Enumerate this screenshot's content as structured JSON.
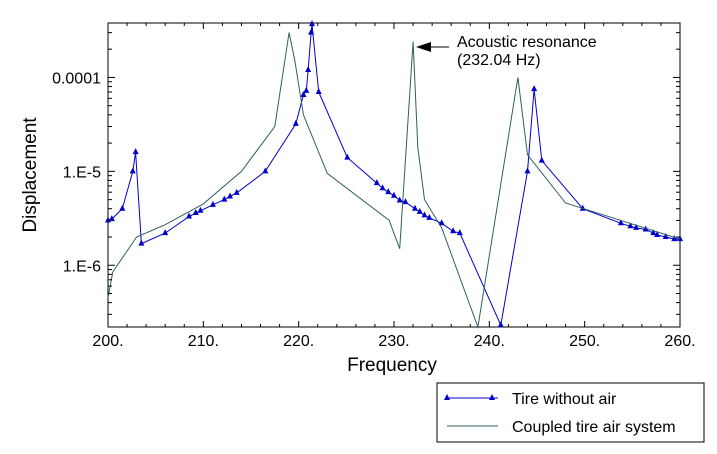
{
  "chart_data": {
    "type": "line",
    "xlabel": "Frequency",
    "ylabel": "Displacement",
    "xlim": [
      200,
      260
    ],
    "ylim": [
      2.2e-07,
      0.00038
    ],
    "yscale": "log",
    "grid": false,
    "legend_position": "bottom-right",
    "x_ticks": [
      {
        "value": 200,
        "label": "200."
      },
      {
        "value": 210,
        "label": "210."
      },
      {
        "value": 220,
        "label": "220."
      },
      {
        "value": 230,
        "label": "230."
      },
      {
        "value": 240,
        "label": "240."
      },
      {
        "value": 250,
        "label": "250."
      },
      {
        "value": 260,
        "label": "260."
      }
    ],
    "y_ticks": [
      {
        "value": 1e-06,
        "label": "1.E-6"
      },
      {
        "value": 1e-05,
        "label": "1.E-5"
      },
      {
        "value": 0.0001,
        "label": "0.0001"
      }
    ],
    "annotation": {
      "lines": [
        "Acoustic resonance",
        "(232.04 Hz)"
      ],
      "x": 232.04,
      "y": 0.00024
    },
    "series": [
      {
        "name": "Tire without air",
        "color": "#0000cc",
        "marker": "triangle",
        "points": [
          [
            200.0,
            3e-06
          ],
          [
            200.4,
            3.1e-06
          ],
          [
            201.5,
            4e-06
          ],
          [
            202.6,
            1e-05
          ],
          [
            202.9,
            1.6e-05
          ],
          [
            203.5,
            1.7e-06
          ],
          [
            206.0,
            2.2e-06
          ],
          [
            208.5,
            3.3e-06
          ],
          [
            209.2,
            3.6e-06
          ],
          [
            209.7,
            3.8e-06
          ],
          [
            211.0,
            4.4e-06
          ],
          [
            212.2,
            5e-06
          ],
          [
            212.8,
            5.4e-06
          ],
          [
            213.5,
            5.9e-06
          ],
          [
            216.5,
            1e-05
          ],
          [
            219.7,
            3.2e-05
          ],
          [
            220.5,
            6.5e-05
          ],
          [
            220.8,
            7.2e-05
          ],
          [
            221.0,
            0.00012
          ],
          [
            221.3,
            0.0003
          ],
          [
            221.4,
            0.00037
          ],
          [
            222.1,
            7e-05
          ],
          [
            225.1,
            1.4e-05
          ],
          [
            228.2,
            7.5e-06
          ],
          [
            228.8,
            6.6e-06
          ],
          [
            229.4,
            6e-06
          ],
          [
            230.0,
            5.5e-06
          ],
          [
            230.6,
            4.9e-06
          ],
          [
            231.2,
            4.7e-06
          ],
          [
            232.2,
            4e-06
          ],
          [
            232.7,
            3.7e-06
          ],
          [
            233.2,
            3.4e-06
          ],
          [
            233.7,
            3.2e-06
          ],
          [
            235.0,
            2.8e-06
          ],
          [
            236.2,
            2.3e-06
          ],
          [
            236.9,
            2.2e-06
          ],
          [
            241.2,
            2.3e-07
          ],
          [
            244.0,
            1e-05
          ],
          [
            244.7,
            7.5e-05
          ],
          [
            245.5,
            1.3e-05
          ],
          [
            249.8,
            4e-06
          ],
          [
            253.8,
            2.8e-06
          ],
          [
            254.8,
            2.6e-06
          ],
          [
            255.4,
            2.5e-06
          ],
          [
            256.4,
            2.4e-06
          ],
          [
            257.2,
            2.2e-06
          ],
          [
            257.6,
            2.1e-06
          ],
          [
            258.5,
            2e-06
          ],
          [
            259.4,
            1.9e-06
          ],
          [
            260.0,
            1.9e-06
          ]
        ]
      },
      {
        "name": "Coupled tire air system",
        "color": "#2f5f5f",
        "marker": "none",
        "points": [
          [
            200.0,
            4.5e-07
          ],
          [
            200.5,
            8.5e-07
          ],
          [
            203.0,
            2e-06
          ],
          [
            206.0,
            2.7e-06
          ],
          [
            210.0,
            4.5e-06
          ],
          [
            214.0,
            1e-05
          ],
          [
            217.5,
            3e-05
          ],
          [
            219.0,
            0.0003
          ],
          [
            219.6,
            0.00015
          ],
          [
            220.5,
            4e-05
          ],
          [
            223.0,
            9.5e-06
          ],
          [
            229.5,
            3e-06
          ],
          [
            230.6,
            1.5e-06
          ],
          [
            232.0,
            0.00024
          ],
          [
            232.5,
            1.8e-05
          ],
          [
            233.2,
            5e-06
          ],
          [
            235.0,
            2.5e-06
          ],
          [
            238.8,
            2.2e-07
          ],
          [
            243.0,
            0.0001
          ],
          [
            244.0,
            1.5e-05
          ],
          [
            248.0,
            4.6e-06
          ],
          [
            260.0,
            1.9e-06
          ]
        ]
      }
    ]
  }
}
